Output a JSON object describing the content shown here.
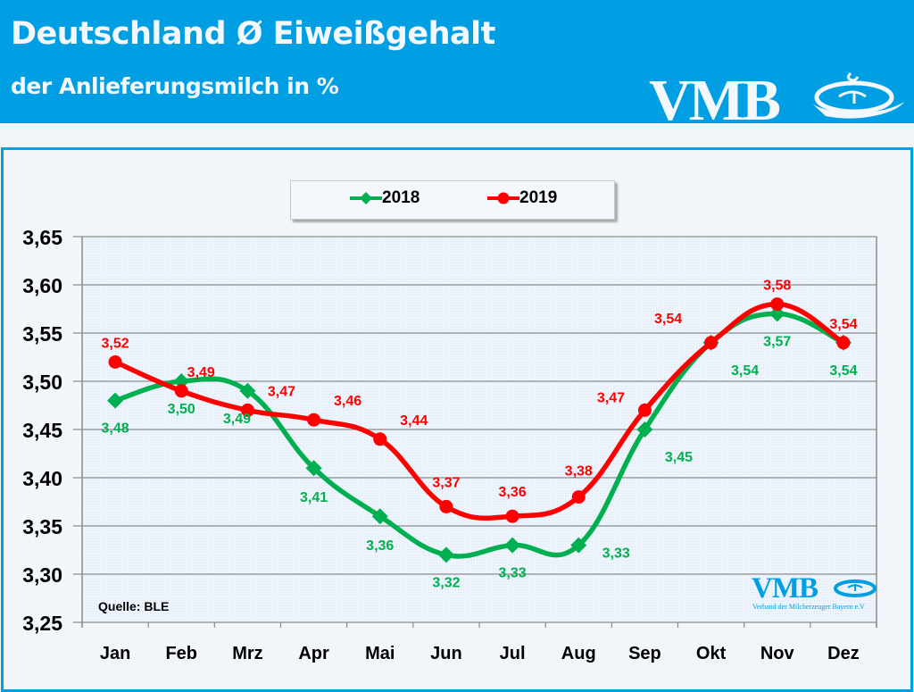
{
  "header": {
    "title": "Deutschland Ø Eiweißgehalt",
    "subtitle": "der Anlieferungsmilch in %",
    "logo_text": "VMB",
    "brand_color": "#009fe3"
  },
  "watermark": {
    "logo_text": "VMB",
    "tagline": "Verband der Milcherzeuger Bayern e.V"
  },
  "source_note": "Quelle: BLE",
  "chart_data": {
    "type": "line",
    "title": "Deutschland Ø Eiweißgehalt",
    "subtitle": "der Anlieferungsmilch in %",
    "xlabel": "",
    "ylabel": "",
    "categories": [
      "Jan",
      "Feb",
      "Mrz",
      "Apr",
      "Mai",
      "Jun",
      "Jul",
      "Aug",
      "Sep",
      "Okt",
      "Nov",
      "Dez"
    ],
    "ylim": [
      3.25,
      3.65
    ],
    "yticks": [
      "3,25",
      "3,30",
      "3,35",
      "3,40",
      "3,45",
      "3,50",
      "3,55",
      "3,60",
      "3,65"
    ],
    "ytick_values": [
      3.25,
      3.3,
      3.35,
      3.4,
      3.45,
      3.5,
      3.55,
      3.6,
      3.65
    ],
    "grid": true,
    "legend_position": "top-center",
    "series": [
      {
        "name": "2018",
        "color": "#00b050",
        "marker": "diamond",
        "values": [
          3.48,
          3.5,
          3.49,
          3.41,
          3.36,
          3.32,
          3.33,
          3.33,
          3.45,
          3.54,
          3.57,
          3.54
        ],
        "labels": [
          "3,48",
          "3,50",
          "3,49",
          "3,41",
          "3,36",
          "3,32",
          "3,33",
          "3,33",
          "3,45",
          "3,54",
          "3,57",
          "3,54"
        ]
      },
      {
        "name": "2019",
        "color": "#ff0000",
        "marker": "circle",
        "values": [
          3.52,
          3.49,
          3.47,
          3.46,
          3.44,
          3.37,
          3.36,
          3.38,
          3.47,
          3.54,
          3.58,
          3.54
        ],
        "labels": [
          "3,52",
          "3,49",
          "3,47",
          "3,46",
          "3,44",
          "3,37",
          "3,36",
          "3,38",
          "3,47",
          "3,54",
          "3,58",
          "3,54"
        ]
      }
    ]
  }
}
